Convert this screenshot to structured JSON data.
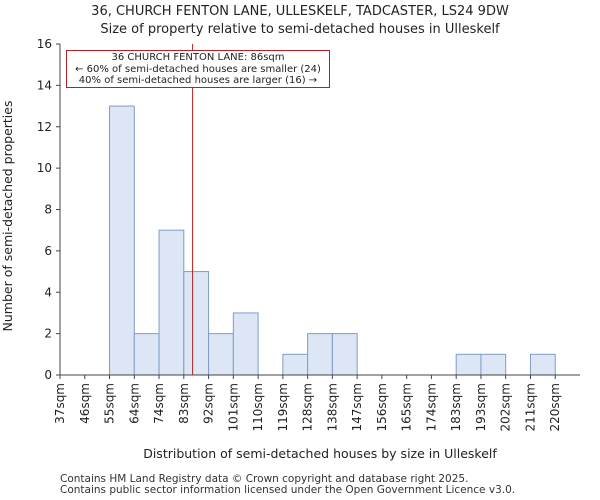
{
  "chart_data": {
    "type": "bar",
    "title": "36, CHURCH FENTON LANE, ULLESKELF, TADCASTER, LS24 9DW",
    "subtitle": "Size of property relative to semi-detached houses in Ulleskelf",
    "xlabel": "Distribution of semi-detached houses by size in Ulleskelf",
    "ylabel": "Number of semi-detached properties",
    "categories": [
      "37sqm",
      "46sqm",
      "55sqm",
      "64sqm",
      "74sqm",
      "83sqm",
      "92sqm",
      "101sqm",
      "110sqm",
      "119sqm",
      "128sqm",
      "138sqm",
      "147sqm",
      "156sqm",
      "165sqm",
      "174sqm",
      "183sqm",
      "193sqm",
      "202sqm",
      "211sqm",
      "220sqm"
    ],
    "values": [
      0,
      0,
      13,
      2,
      7,
      5,
      2,
      3,
      0,
      1,
      2,
      2,
      0,
      0,
      0,
      0,
      1,
      1,
      0,
      1,
      0
    ],
    "ylim": [
      0,
      16
    ],
    "yticks": [
      0,
      2,
      4,
      6,
      8,
      10,
      12,
      14,
      16
    ],
    "grid": false,
    "marker_value_sqm": 86,
    "annotation": {
      "line1": "36 CHURCH FENTON LANE: 86sqm",
      "line2": "← 60% of semi-detached houses are smaller (24)",
      "line3": "40% of semi-detached houses are larger (16) →"
    }
  },
  "colors": {
    "bar_fill": "#dce6f4",
    "bar_edge": "#7f9ccb",
    "marker": "#b22222",
    "axis": "#444444"
  },
  "footer": {
    "line1": "Contains HM Land Registry data © Crown copyright and database right 2025.",
    "line2": "Contains public sector information licensed under the Open Government Licence v3.0."
  }
}
